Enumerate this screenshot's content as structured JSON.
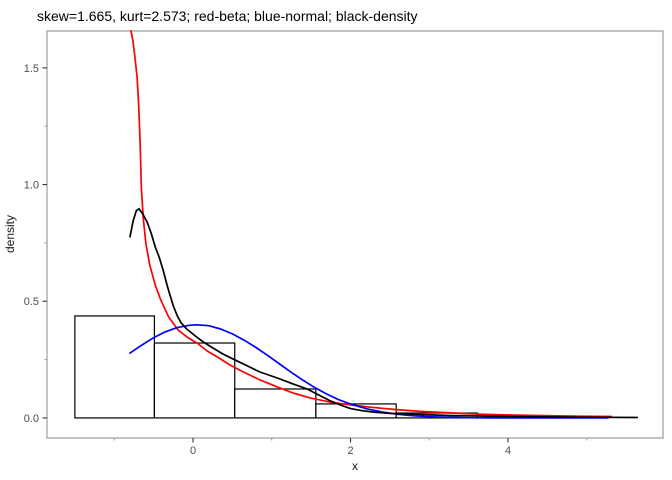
{
  "chart_data": {
    "type": "histogram",
    "title": "skew=1.665, kurt=2.573; red-beta; blue-normal; black-density",
    "xlabel": "x",
    "ylabel": "density",
    "x_range": [
      -1.854,
      5.968
    ],
    "y_range": [
      -0.086,
      1.658
    ],
    "x_ticks": {
      "values": [
        0,
        2,
        4
      ],
      "labels": [
        "0",
        "2",
        "4"
      ],
      "minor": [
        -1,
        1,
        3,
        5
      ]
    },
    "y_ticks": {
      "values": [
        0.0,
        0.5,
        1.0,
        1.5
      ],
      "labels": [
        "0.0",
        "0.5",
        "1.0",
        "1.5"
      ],
      "minor": [
        0.25,
        0.75,
        1.25
      ]
    },
    "grid": "off",
    "legend": "none (encoded in title: red-beta; blue-normal; black-density)",
    "histogram": {
      "bin_edges": [
        -1.5,
        -0.49,
        0.53,
        1.56,
        2.58,
        3.61
      ],
      "densities": [
        0.437,
        0.321,
        0.124,
        0.06,
        0.021
      ],
      "fill": "#ffffff",
      "stroke": "#000000"
    },
    "series": [
      {
        "name": "beta",
        "color": "#ff0000",
        "points": [
          [
            -0.787,
            1.659
          ],
          [
            -0.765,
            1.62
          ],
          [
            -0.74,
            1.555
          ],
          [
            -0.71,
            1.46
          ],
          [
            -0.69,
            1.34
          ],
          [
            -0.67,
            1.17
          ],
          [
            -0.655,
            0.98
          ],
          [
            -0.63,
            0.85
          ],
          [
            -0.6,
            0.75
          ],
          [
            -0.55,
            0.656
          ],
          [
            -0.48,
            0.57
          ],
          [
            -0.41,
            0.506
          ],
          [
            -0.31,
            0.433
          ],
          [
            -0.19,
            0.377
          ],
          [
            -0.06,
            0.343
          ],
          [
            0.05,
            0.321
          ],
          [
            0.18,
            0.287
          ],
          [
            0.31,
            0.261
          ],
          [
            0.47,
            0.227
          ],
          [
            0.64,
            0.197
          ],
          [
            0.85,
            0.163
          ],
          [
            1.07,
            0.133
          ],
          [
            1.27,
            0.107
          ],
          [
            1.49,
            0.086
          ],
          [
            1.74,
            0.068
          ],
          [
            2.0,
            0.056
          ],
          [
            2.25,
            0.046
          ],
          [
            2.57,
            0.036
          ],
          [
            2.88,
            0.028
          ],
          [
            3.26,
            0.0215
          ],
          [
            3.64,
            0.016
          ],
          [
            4.03,
            0.0125
          ],
          [
            4.53,
            0.0095
          ],
          [
            4.91,
            0.0075
          ],
          [
            5.31,
            0.006
          ]
        ]
      },
      {
        "name": "normal",
        "color": "#0000ff",
        "points": [
          [
            -0.8,
            0.278
          ],
          [
            -0.65,
            0.312
          ],
          [
            -0.5,
            0.344
          ],
          [
            -0.35,
            0.369
          ],
          [
            -0.2,
            0.387
          ],
          [
            -0.05,
            0.397
          ],
          [
            0.05,
            0.399
          ],
          [
            0.2,
            0.395
          ],
          [
            0.35,
            0.381
          ],
          [
            0.5,
            0.36
          ],
          [
            0.65,
            0.333
          ],
          [
            0.8,
            0.302
          ],
          [
            0.95,
            0.267
          ],
          [
            1.1,
            0.231
          ],
          [
            1.25,
            0.195
          ],
          [
            1.4,
            0.161
          ],
          [
            1.55,
            0.129
          ],
          [
            1.7,
            0.102
          ],
          [
            1.85,
            0.078
          ],
          [
            2.0,
            0.0596
          ],
          [
            2.2,
            0.0396
          ],
          [
            2.4,
            0.0252
          ],
          [
            2.6,
            0.0154
          ],
          [
            2.8,
            0.009
          ],
          [
            3.0,
            0.0051
          ],
          [
            3.25,
            0.0024
          ],
          [
            3.5,
            0.001
          ],
          [
            3.8,
            0.0003
          ],
          [
            4.2,
            0.0001
          ],
          [
            4.7,
            5e-05
          ],
          [
            5.27,
            0.0
          ]
        ]
      },
      {
        "name": "density",
        "color": "#000000",
        "points": [
          [
            -0.8,
            0.776
          ],
          [
            -0.76,
            0.845
          ],
          [
            -0.72,
            0.888
          ],
          [
            -0.686,
            0.896
          ],
          [
            -0.64,
            0.875
          ],
          [
            -0.58,
            0.838
          ],
          [
            -0.53,
            0.79
          ],
          [
            -0.48,
            0.733
          ],
          [
            -0.43,
            0.69
          ],
          [
            -0.38,
            0.634
          ],
          [
            -0.33,
            0.57
          ],
          [
            -0.29,
            0.523
          ],
          [
            -0.25,
            0.48
          ],
          [
            -0.2,
            0.437
          ],
          [
            -0.15,
            0.407
          ],
          [
            -0.08,
            0.381
          ],
          [
            0.03,
            0.351
          ],
          [
            0.13,
            0.326
          ],
          [
            0.25,
            0.3
          ],
          [
            0.38,
            0.274
          ],
          [
            0.53,
            0.249
          ],
          [
            0.69,
            0.223
          ],
          [
            0.85,
            0.197
          ],
          [
            1.07,
            0.171
          ],
          [
            1.27,
            0.146
          ],
          [
            1.45,
            0.124
          ],
          [
            1.6,
            0.098
          ],
          [
            1.75,
            0.072
          ],
          [
            1.9,
            0.052
          ],
          [
            2.0,
            0.04
          ],
          [
            2.15,
            0.031
          ],
          [
            2.3,
            0.025
          ],
          [
            2.5,
            0.0195
          ],
          [
            2.75,
            0.016
          ],
          [
            3.0,
            0.013
          ],
          [
            3.3,
            0.01
          ],
          [
            3.6,
            0.0085
          ],
          [
            4.0,
            0.006
          ],
          [
            4.4,
            0.0045
          ],
          [
            4.8,
            0.0035
          ],
          [
            5.2,
            0.0028
          ],
          [
            5.64,
            0.002
          ]
        ]
      }
    ],
    "panel_border_color": "#9b9b9b",
    "tick_color": "#333333"
  }
}
